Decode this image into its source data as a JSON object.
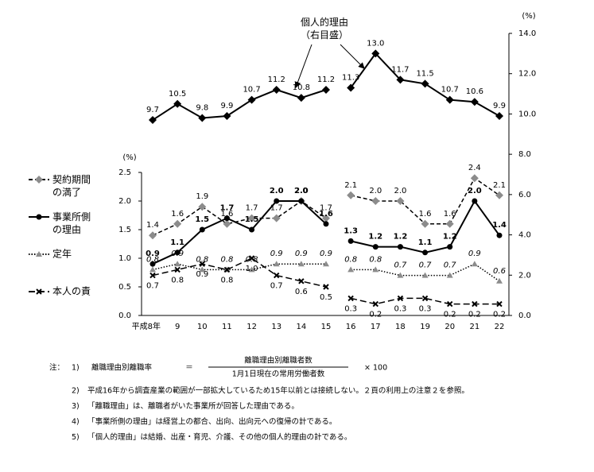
{
  "chart_data": {
    "type": "line",
    "categories": [
      "平成8年",
      "9",
      "10",
      "11",
      "12",
      "13",
      "14",
      "15",
      "16",
      "17",
      "18",
      "19",
      "20",
      "21",
      "22"
    ],
    "break_after": "15",
    "ylabel": "(%)",
    "y2label": "(%)",
    "ylim": [
      0,
      2.5
    ],
    "yticks": [
      {
        "value": 0,
        "label": "0.0"
      },
      0.5,
      {
        "value": 1,
        "label": "1.0"
      },
      1.5,
      {
        "value": 2,
        "label": "2.0"
      },
      2.5
    ],
    "y2lim": [
      0,
      14
    ],
    "y2ticks": [
      {
        "value": 0,
        "label": "0.0"
      },
      {
        "value": 2,
        "label": "2.0"
      },
      {
        "value": 4,
        "label": "4.0"
      },
      {
        "value": 6,
        "label": "6.0"
      },
      {
        "value": 8,
        "label": "8.0"
      },
      {
        "value": 10,
        "label": "10.0"
      },
      {
        "value": 12,
        "label": "12.0"
      },
      {
        "value": 14,
        "label": "14.0"
      }
    ],
    "annotation": "個人的理由\n（右目盛）",
    "legend": "left",
    "series": [
      {
        "name": "契約期間\nの満了",
        "color": "#000000",
        "marker_color": "#8c8c8c",
        "dash": "dashed",
        "marker": "diamond",
        "label_style": "normal",
        "label_pos": "above",
        "values": [
          1.4,
          1.6,
          1.9,
          1.6,
          1.7,
          1.7,
          2.0,
          1.7,
          2.1,
          2.0,
          2.0,
          1.6,
          1.6,
          2.4,
          2.1
        ],
        "value_labels": [
          "1.4",
          "1.6",
          "1.9",
          "1.6",
          "1.7",
          "1.7",
          "2.0",
          "1.7",
          "2.1",
          "2.0",
          "2.0",
          "1.6",
          "1.6",
          "2.4",
          "2.1"
        ]
      },
      {
        "name": "事業所側\nの理由",
        "color": "#000000",
        "marker_color": "#000000",
        "dash": "solid",
        "marker": "circle",
        "label_style": "bold",
        "label_pos": "above",
        "values": [
          0.9,
          1.1,
          1.5,
          1.7,
          1.5,
          2.0,
          2.0,
          1.6,
          1.3,
          1.2,
          1.2,
          1.1,
          1.2,
          2.0,
          1.4
        ],
        "value_labels": [
          "0.9",
          "1.1",
          "1.5",
          "1.7",
          "1.5",
          "2.0",
          "2.0",
          "1.6",
          "1.3",
          "1.2",
          "1.2",
          "1.1",
          "1.2",
          "2.0",
          "1.4"
        ]
      },
      {
        "name": "定年",
        "color": "#000000",
        "marker_color": "#8c8c8c",
        "dash": "dotted",
        "marker": "triangle",
        "label_style": "italic",
        "label_pos": "above",
        "values": [
          0.8,
          0.9,
          0.8,
          0.8,
          0.8,
          0.9,
          0.9,
          0.9,
          0.8,
          0.8,
          0.7,
          0.7,
          0.7,
          0.9,
          0.6
        ],
        "value_labels": [
          "0.8",
          "0.9",
          "0.8",
          "0.8",
          "0.8",
          "0.9",
          "0.9",
          "0.9",
          "0.8",
          "0.8",
          "0.7",
          "0.7",
          "0.7",
          "0.9",
          "0.6"
        ]
      },
      {
        "name": "本人の責",
        "color": "#000000",
        "marker_color": "#000000",
        "dash": "longdash",
        "marker": "x",
        "label_style": "normal",
        "label_pos": "below",
        "values": [
          0.7,
          0.8,
          0.9,
          0.8,
          1.0,
          0.7,
          0.6,
          0.5,
          0.3,
          0.2,
          0.3,
          0.3,
          0.2,
          0.2,
          0.2
        ],
        "value_labels": [
          "0.7",
          "0.8",
          "0.9",
          "0.8",
          "1.0",
          "0.7",
          "0.6",
          "0.5",
          "0.3",
          "0.2",
          "0.3",
          "0.3",
          "0.2",
          "0.2",
          "0.2"
        ]
      },
      {
        "name": "個人的理由",
        "axis": "y2",
        "color": "#000000",
        "marker_color": "#000000",
        "dash": "solid",
        "marker": "diamond",
        "label_style": "normal",
        "label_pos": "above",
        "in_legend": false,
        "values": [
          9.7,
          10.5,
          9.8,
          9.9,
          10.7,
          11.2,
          10.8,
          11.2,
          11.3,
          13.0,
          11.7,
          11.5,
          10.7,
          10.6,
          9.9
        ],
        "value_labels": [
          "9.7",
          "10.5",
          "9.8",
          "9.9",
          "10.7",
          "11.2",
          "10.8",
          "11.2",
          "11.3",
          "13.0",
          "11.7",
          "11.5",
          "10.7",
          "10.6",
          "9.9"
        ]
      }
    ]
  },
  "notes": {
    "label": "注：",
    "formula": {
      "number": "1)",
      "lhs": "離職理由別離職率",
      "eq": "＝",
      "numerator": "離職理由別離職者数",
      "denominator": "1月1日現在の常用労働者数",
      "times": "× 100"
    },
    "items": [
      {
        "number": "2)",
        "text": "平成16年から調査産業の範囲が一部拡大しているため15年以前とは接続しない。２頁の利用上の注意２を参照。"
      },
      {
        "number": "3)",
        "text": "「離職理由」は、離職者がいた事業所が回答した理由である。"
      },
      {
        "number": "4)",
        "text": "「事業所側の理由」は経営上の都合、出向、出向元への復帰の計である。"
      },
      {
        "number": "5)",
        "text": "「個人的理由」は結婚、出産・育児、介護、その他の個人的理由の計である。"
      }
    ]
  }
}
